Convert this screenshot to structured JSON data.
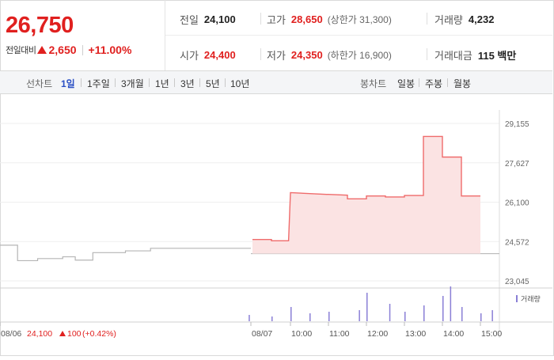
{
  "summary": {
    "price": "26,750",
    "change_label": "전일대비",
    "change_value": "2,650",
    "change_pct": "+11.00%",
    "prev_close": {
      "label": "전일",
      "value": "24,100"
    },
    "high": {
      "label": "고가",
      "value": "28,650",
      "sub": "(상한가 31,300)"
    },
    "volume": {
      "label": "거래량",
      "value": "4,232"
    },
    "open": {
      "label": "시가",
      "value": "24,400"
    },
    "low": {
      "label": "저가",
      "value": "24,350",
      "sub": "(하한가 16,900)"
    },
    "amount": {
      "label": "거래대금",
      "value": "115 백만"
    }
  },
  "tabs": {
    "line_label": "선차트",
    "line_periods": [
      "1일",
      "1주일",
      "3개월",
      "1년",
      "3년",
      "5년",
      "10년"
    ],
    "active": "1일",
    "candle_label": "봉차트",
    "candle_periods": [
      "일봉",
      "주봉",
      "월봉"
    ]
  },
  "colors": {
    "up": "#e0201f",
    "active_tab": "#2a4fc4",
    "volume_bar": "#8a7fd6"
  },
  "chart_data": {
    "type": "line",
    "y_ticks": [
      "29,155",
      "27,627",
      "26,100",
      "24,572",
      "23,045"
    ],
    "ylim": [
      23045,
      29155
    ],
    "baseline": 24100,
    "legend": "거래량",
    "x_ticks": [
      "08/06",
      "08/07",
      "10:00",
      "11:00",
      "12:00",
      "13:00",
      "14:00",
      "15:00"
    ],
    "prev_day_series": [
      {
        "x": 0.0,
        "y": 24430
      },
      {
        "x": 0.07,
        "y": 24430
      },
      {
        "x": 0.07,
        "y": 23830
      },
      {
        "x": 0.15,
        "y": 23830
      },
      {
        "x": 0.15,
        "y": 23910
      },
      {
        "x": 0.25,
        "y": 23910
      },
      {
        "x": 0.25,
        "y": 23980
      },
      {
        "x": 0.3,
        "y": 23980
      },
      {
        "x": 0.3,
        "y": 23850
      },
      {
        "x": 0.37,
        "y": 23850
      },
      {
        "x": 0.37,
        "y": 24140
      },
      {
        "x": 0.5,
        "y": 24140
      },
      {
        "x": 0.5,
        "y": 24210
      },
      {
        "x": 0.6,
        "y": 24210
      },
      {
        "x": 0.6,
        "y": 24310
      },
      {
        "x": 1.0,
        "y": 24310
      }
    ],
    "today_series": [
      {
        "t": 9.0,
        "y": 24650
      },
      {
        "t": 9.5,
        "y": 24650
      },
      {
        "t": 9.5,
        "y": 24600
      },
      {
        "t": 9.95,
        "y": 24600
      },
      {
        "t": 10.0,
        "y": 26470
      },
      {
        "t": 10.95,
        "y": 26400
      },
      {
        "t": 11.0,
        "y": 26400
      },
      {
        "t": 11.5,
        "y": 26370
      },
      {
        "t": 11.5,
        "y": 26230
      },
      {
        "t": 12.0,
        "y": 26230
      },
      {
        "t": 12.0,
        "y": 26340
      },
      {
        "t": 12.5,
        "y": 26340
      },
      {
        "t": 12.5,
        "y": 26300
      },
      {
        "t": 13.0,
        "y": 26300
      },
      {
        "t": 13.0,
        "y": 26360
      },
      {
        "t": 13.5,
        "y": 26360
      },
      {
        "t": 13.5,
        "y": 28650
      },
      {
        "t": 14.0,
        "y": 28650
      },
      {
        "t": 14.0,
        "y": 27850
      },
      {
        "t": 14.5,
        "y": 27850
      },
      {
        "t": 14.5,
        "y": 26340
      },
      {
        "t": 15.0,
        "y": 26340
      }
    ],
    "baseline_label": "24,100",
    "baseline_change": "100",
    "baseline_pct": "(+0.42%)",
    "volume_bars": [
      {
        "t": 8.9,
        "v": 8
      },
      {
        "t": 9.5,
        "v": 6
      },
      {
        "t": 10.0,
        "v": 18
      },
      {
        "t": 10.5,
        "v": 10
      },
      {
        "t": 11.0,
        "v": 12
      },
      {
        "t": 11.8,
        "v": 14
      },
      {
        "t": 12.0,
        "v": 36
      },
      {
        "t": 12.6,
        "v": 22
      },
      {
        "t": 13.0,
        "v": 12
      },
      {
        "t": 13.5,
        "v": 20
      },
      {
        "t": 14.0,
        "v": 32
      },
      {
        "t": 14.2,
        "v": 44
      },
      {
        "t": 14.5,
        "v": 18
      },
      {
        "t": 15.0,
        "v": 10
      },
      {
        "t": 15.3,
        "v": 14
      }
    ]
  }
}
